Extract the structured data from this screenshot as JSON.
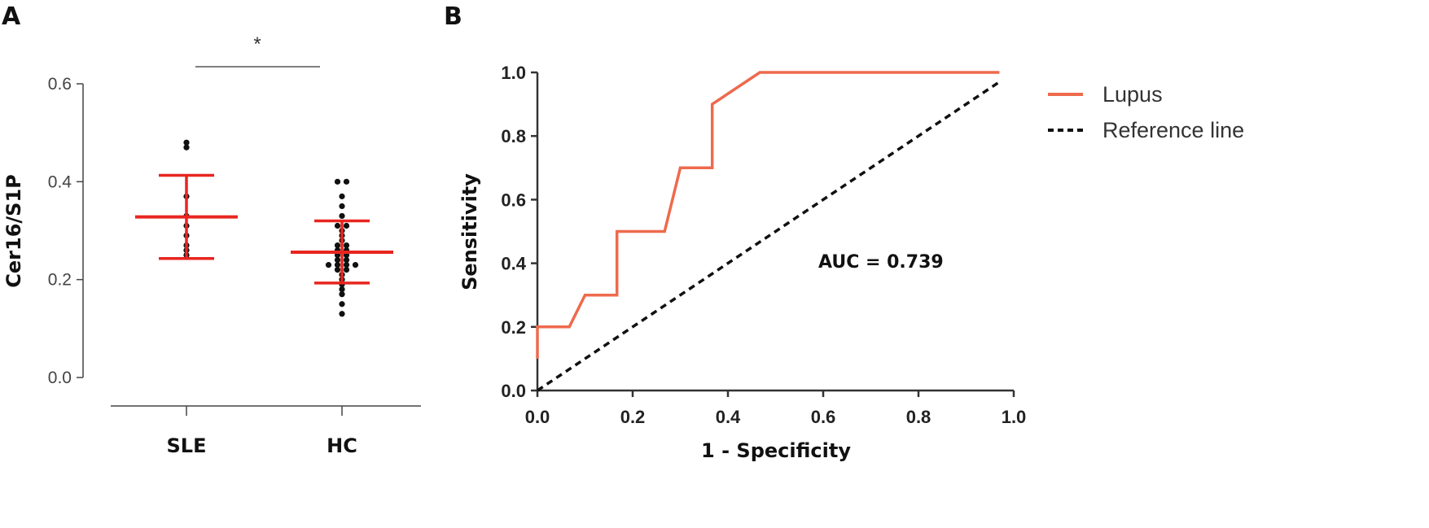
{
  "chart_data": [
    {
      "panel": "A",
      "type": "scatter",
      "ylabel": "Cer16/S1P",
      "xlabel": "",
      "ylim": [
        0,
        0.6
      ],
      "yticks": [
        "0.0",
        "0.2",
        "0.4",
        "0.6"
      ],
      "yticks_values": [
        0,
        0.2,
        0.4,
        0.6
      ],
      "categories": [
        "SLE",
        "HC"
      ],
      "significance": "*",
      "colors": {
        "points": "#111111",
        "summary": "#e8251f",
        "axis": "#444444"
      },
      "groups": [
        {
          "name": "SLE",
          "mean": 0.328,
          "sd_upper": 0.413,
          "sd_lower": 0.243,
          "points": [
            0.48,
            0.47,
            0.37,
            0.33,
            0.31,
            0.29,
            0.27,
            0.26,
            0.25
          ]
        },
        {
          "name": "HC",
          "mean": 0.256,
          "sd_upper": 0.32,
          "sd_lower": 0.193,
          "points": [
            0.4,
            0.4,
            0.37,
            0.35,
            0.33,
            0.31,
            0.31,
            0.3,
            0.29,
            0.28,
            0.27,
            0.27,
            0.26,
            0.26,
            0.25,
            0.25,
            0.24,
            0.24,
            0.23,
            0.23,
            0.23,
            0.23,
            0.22,
            0.22,
            0.21,
            0.2,
            0.19,
            0.18,
            0.17,
            0.15,
            0.13
          ]
        }
      ]
    },
    {
      "panel": "B",
      "type": "line",
      "xlabel": "1 - Specificity",
      "ylabel": "Sensitivity",
      "xlim": [
        0,
        1
      ],
      "ylim": [
        0,
        1
      ],
      "xticks": [
        "0.0",
        "0.2",
        "0.4",
        "0.6",
        "0.8",
        "1.0"
      ],
      "xticks_values": [
        0,
        0.2,
        0.4,
        0.6,
        0.8,
        1.0
      ],
      "yticks": [
        "0.0",
        "0.2",
        "0.4",
        "0.6",
        "0.8",
        "1.0"
      ],
      "yticks_values": [
        0,
        0.2,
        0.4,
        0.6,
        0.8,
        1.0
      ],
      "annotation": "AUC = 0.739",
      "legend_position": "right",
      "series": [
        {
          "name": "Lupus",
          "color": "#ee6a4d",
          "style": "solid",
          "x": [
            0,
            0,
            0.067,
            0.1,
            0.167,
            0.167,
            0.267,
            0.3,
            0.367,
            0.367,
            0.467,
            0.97
          ],
          "y": [
            0.1,
            0.2,
            0.2,
            0.3,
            0.3,
            0.5,
            0.5,
            0.7,
            0.7,
            0.9,
            1.0,
            1.0
          ]
        },
        {
          "name": "Reference line",
          "color": "#111111",
          "style": "dashed",
          "x": [
            0,
            0.97
          ],
          "y": [
            0,
            0.97
          ]
        }
      ]
    }
  ]
}
